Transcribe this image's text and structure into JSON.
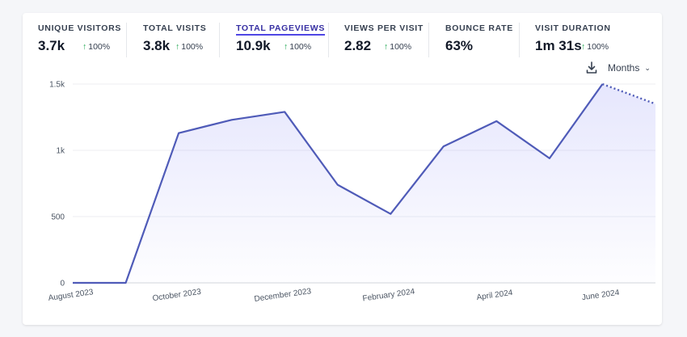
{
  "metrics": [
    {
      "label": "UNIQUE VISITORS",
      "value": "3.7k",
      "change": "100%",
      "active": false
    },
    {
      "label": "TOTAL VISITS",
      "value": "3.8k",
      "change": "100%",
      "active": false
    },
    {
      "label": "TOTAL PAGEVIEWS",
      "value": "10.9k",
      "change": "100%",
      "active": true
    },
    {
      "label": "VIEWS PER VISIT",
      "value": "2.82",
      "change": "100%",
      "active": false
    },
    {
      "label": "BOUNCE RATE",
      "value": "63%",
      "change": "",
      "active": false
    },
    {
      "label": "VISIT DURATION",
      "value": "1m 31s",
      "change": "100%",
      "active": false
    }
  ],
  "controls": {
    "interval_label": "Months",
    "download_icon": "download-icon",
    "chevron_icon": "chevron-down-icon"
  },
  "colors": {
    "line": "#4f5bb8",
    "positive": "#16a34a",
    "active_metric": "#3730a3"
  },
  "chart_data": {
    "type": "area",
    "x_tick_labels": [
      "August 2023",
      "October 2023",
      "December 2023",
      "February 2024",
      "April 2024",
      "June 2024"
    ],
    "y_ticks": [
      0,
      500,
      "1k",
      "1.5k"
    ],
    "ylim": [
      0,
      1500
    ],
    "series": [
      {
        "values": [
          0,
          0,
          1130,
          1230,
          1290,
          740,
          520,
          1030,
          1220,
          940,
          1500,
          1350
        ],
        "partial_last_point": true
      }
    ],
    "grid": true
  }
}
